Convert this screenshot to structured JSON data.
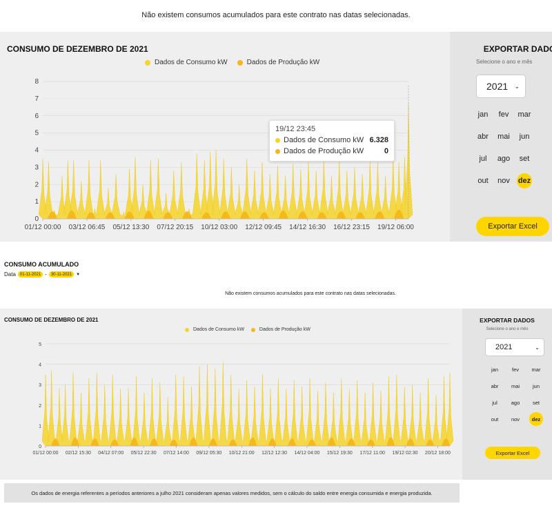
{
  "notice_top": "Não existem consumos acumulados para este contrato nas datas selecionadas.",
  "colors": {
    "consumo": "#f6d42a",
    "producao": "#f5b71a",
    "accent": "#ffd500"
  },
  "chart1": {
    "title": "CONSUMO DE DEZEMBRO DE 2021",
    "legend": [
      "Dados de Consumo kW",
      "Dados de Produção kW"
    ],
    "tooltip": {
      "date": "19/12 23:45",
      "consumo_label": "Dados de Consumo kW",
      "consumo_value": "6.328",
      "producao_label": "Dados de Produção kW",
      "producao_value": "0"
    }
  },
  "side1": {
    "title": "EXPORTAR DADOS",
    "subtitle": "Selecione o ano e mês",
    "year": "2021",
    "months": [
      "jan",
      "fev",
      "mar",
      "abr",
      "mai",
      "jun",
      "jul",
      "ago",
      "set",
      "out",
      "nov",
      "dez"
    ],
    "selected_month": "dez",
    "export_label": "Exportar Excel"
  },
  "accumulated": {
    "title": "CONSUMO ACUMULADO",
    "date_label": "Data",
    "date_from": "01-11-2021",
    "date_sep": "-",
    "date_to": "30-11-2021",
    "notice": "Não existem consumos acumulados para este contrato nas datas selecionadas."
  },
  "chart2": {
    "title": "CONSUMO DE DEZEMBRO DE 2021",
    "legend": [
      "Dados de Consumo kW",
      "Dados de Produção kW"
    ]
  },
  "side2": {
    "title": "EXPORTAR DADOS",
    "subtitle": "Selecione o ano e mês",
    "year": "2021",
    "months": [
      "jan",
      "fev",
      "mar",
      "abr",
      "mai",
      "jun",
      "jul",
      "ago",
      "set",
      "out",
      "nov",
      "dez"
    ],
    "selected_month": "dez",
    "export_label": "Exportar Excel"
  },
  "footer_note": "Os dados de energia referentes a períodos anteriores a julho 2021 consideram apenas valores medidos, sem o cálculo do saldo entre energia consumida e energia produzida.",
  "chart_data": [
    {
      "type": "area",
      "title": "CONSUMO DE DEZEMBRO DE 2021",
      "series": [
        {
          "name": "Dados de Consumo kW"
        },
        {
          "name": "Dados de Produção kW"
        }
      ],
      "yticks": [
        0,
        1,
        2,
        3,
        4,
        5,
        6,
        7,
        8
      ],
      "ylim": [
        0,
        8
      ],
      "xticks": [
        "01/12 00:00",
        "03/12 06:45",
        "05/12 13:30",
        "07/12 20:15",
        "10/12 03:00",
        "12/12 09:45",
        "14/12 16:30",
        "16/12 23:15",
        "19/12 06:00"
      ],
      "x_range_days": [
        0,
        19.0
      ],
      "consumo_peaks": [
        [
          0.0,
          3.5
        ],
        [
          0.3,
          3.3
        ],
        [
          0.6,
          0.5
        ],
        [
          1.0,
          2.5
        ],
        [
          1.3,
          3.4
        ],
        [
          1.6,
          3.4
        ],
        [
          2.0,
          2.2
        ],
        [
          2.4,
          3.4
        ],
        [
          2.7,
          0.6
        ],
        [
          3.0,
          3.4
        ],
        [
          3.4,
          1.8
        ],
        [
          3.8,
          2.6
        ],
        [
          4.2,
          0.4
        ],
        [
          4.5,
          2.9
        ],
        [
          4.8,
          3.6
        ],
        [
          5.2,
          2.0
        ],
        [
          5.6,
          3.4
        ],
        [
          6.0,
          3.5
        ],
        [
          6.4,
          1.5
        ],
        [
          6.8,
          2.8
        ],
        [
          7.2,
          3.3
        ],
        [
          7.6,
          0.6
        ],
        [
          8.0,
          3.8
        ],
        [
          8.4,
          3.4
        ],
        [
          8.7,
          3.9
        ],
        [
          9.0,
          4.0
        ],
        [
          9.4,
          3.5
        ],
        [
          9.8,
          3.0
        ],
        [
          10.2,
          2.0
        ],
        [
          10.6,
          3.5
        ],
        [
          11.0,
          2.8
        ],
        [
          11.4,
          3.3
        ],
        [
          11.8,
          2.6
        ],
        [
          12.2,
          3.1
        ],
        [
          12.6,
          2.5
        ],
        [
          13.0,
          3.2
        ],
        [
          13.4,
          2.9
        ],
        [
          13.8,
          3.3
        ],
        [
          14.2,
          2.8
        ],
        [
          14.6,
          3.5
        ],
        [
          15.0,
          2.5
        ],
        [
          15.4,
          3.4
        ],
        [
          15.8,
          2.8
        ],
        [
          16.2,
          3.0
        ],
        [
          16.6,
          2.6
        ],
        [
          17.0,
          3.4
        ],
        [
          17.4,
          3.3
        ],
        [
          17.8,
          2.5
        ],
        [
          18.2,
          3.6
        ],
        [
          18.5,
          3.3
        ],
        [
          18.8,
          3.6
        ],
        [
          19.0,
          6.8
        ]
      ],
      "producao_peaks": [
        [
          0.5,
          0.7
        ],
        [
          1.5,
          0.8
        ],
        [
          2.5,
          0.6
        ],
        [
          3.5,
          0.6
        ],
        [
          4.5,
          0.7
        ],
        [
          5.5,
          0.8
        ],
        [
          6.5,
          0.6
        ],
        [
          7.5,
          0.7
        ],
        [
          8.5,
          0.6
        ],
        [
          9.5,
          0.7
        ],
        [
          10.5,
          0.7
        ],
        [
          11.5,
          0.6
        ],
        [
          12.5,
          0.8
        ],
        [
          13.5,
          0.7
        ],
        [
          14.5,
          0.6
        ],
        [
          15.5,
          0.7
        ],
        [
          16.5,
          0.6
        ],
        [
          17.5,
          0.7
        ],
        [
          18.5,
          0.9
        ]
      ]
    },
    {
      "type": "area",
      "title": "CONSUMO DE DEZEMBRO DE 2021",
      "series": [
        {
          "name": "Dados de Consumo kW"
        },
        {
          "name": "Dados de Produção kW"
        }
      ],
      "yticks": [
        0,
        1,
        2,
        3,
        4,
        5
      ],
      "ylim": [
        0,
        5
      ],
      "xticks": [
        "01/12 00:00",
        "02/12 15:30",
        "04/12 07:00",
        "05/12 22:30",
        "07/12 14:00",
        "09/12 05:30",
        "10/12 21:00",
        "12/12 12:30",
        "14/12 04:00",
        "15/12 19:30",
        "17/12 11:00",
        "19/12 02:30",
        "20/12 18:00"
      ],
      "x_range_days": [
        0,
        20.5
      ],
      "consumo_peaks": [
        [
          0.0,
          3.5
        ],
        [
          0.3,
          3.7
        ],
        [
          0.7,
          2.8
        ],
        [
          1.0,
          3.0
        ],
        [
          1.4,
          3.6
        ],
        [
          1.8,
          2.6
        ],
        [
          2.2,
          3.3
        ],
        [
          2.6,
          3.6
        ],
        [
          3.0,
          3.0
        ],
        [
          3.4,
          3.5
        ],
        [
          3.8,
          2.8
        ],
        [
          4.2,
          2.8
        ],
        [
          4.6,
          3.4
        ],
        [
          5.0,
          2.6
        ],
        [
          5.4,
          3.3
        ],
        [
          5.8,
          3.1
        ],
        [
          6.2,
          2.4
        ],
        [
          6.6,
          3.5
        ],
        [
          7.0,
          3.4
        ],
        [
          7.4,
          2.9
        ],
        [
          7.8,
          3.9
        ],
        [
          8.2,
          4.0
        ],
        [
          8.6,
          3.8
        ],
        [
          9.0,
          4.1
        ],
        [
          9.4,
          3.5
        ],
        [
          9.8,
          2.8
        ],
        [
          10.2,
          3.2
        ],
        [
          10.6,
          2.9
        ],
        [
          11.0,
          3.5
        ],
        [
          11.4,
          2.8
        ],
        [
          11.8,
          3.3
        ],
        [
          12.2,
          2.8
        ],
        [
          12.6,
          3.2
        ],
        [
          13.0,
          2.9
        ],
        [
          13.4,
          3.3
        ],
        [
          13.8,
          2.7
        ],
        [
          14.2,
          3.1
        ],
        [
          14.6,
          2.6
        ],
        [
          15.0,
          3.3
        ],
        [
          15.4,
          2.8
        ],
        [
          15.8,
          3.2
        ],
        [
          16.2,
          2.6
        ],
        [
          16.6,
          3.1
        ],
        [
          17.0,
          2.7
        ],
        [
          17.4,
          3.4
        ],
        [
          17.8,
          3.5
        ],
        [
          18.2,
          2.9
        ],
        [
          18.6,
          3.0
        ],
        [
          19.0,
          2.6
        ],
        [
          19.4,
          3.3
        ],
        [
          19.8,
          2.5
        ],
        [
          20.2,
          3.4
        ],
        [
          20.5,
          3.6
        ]
      ],
      "producao_peaks": [
        [
          0.5,
          0.6
        ],
        [
          1.5,
          0.7
        ],
        [
          2.5,
          0.6
        ],
        [
          3.5,
          0.5
        ],
        [
          4.5,
          0.7
        ],
        [
          5.5,
          0.6
        ],
        [
          6.5,
          0.5
        ],
        [
          7.5,
          0.7
        ],
        [
          8.5,
          0.6
        ],
        [
          9.5,
          0.5
        ],
        [
          10.5,
          0.7
        ],
        [
          11.5,
          0.6
        ],
        [
          12.5,
          0.6
        ],
        [
          13.5,
          0.5
        ],
        [
          14.5,
          0.7
        ],
        [
          15.5,
          0.6
        ],
        [
          16.5,
          0.5
        ],
        [
          17.5,
          0.7
        ],
        [
          18.5,
          0.6
        ],
        [
          19.5,
          0.5
        ],
        [
          20.3,
          0.6
        ]
      ]
    }
  ]
}
